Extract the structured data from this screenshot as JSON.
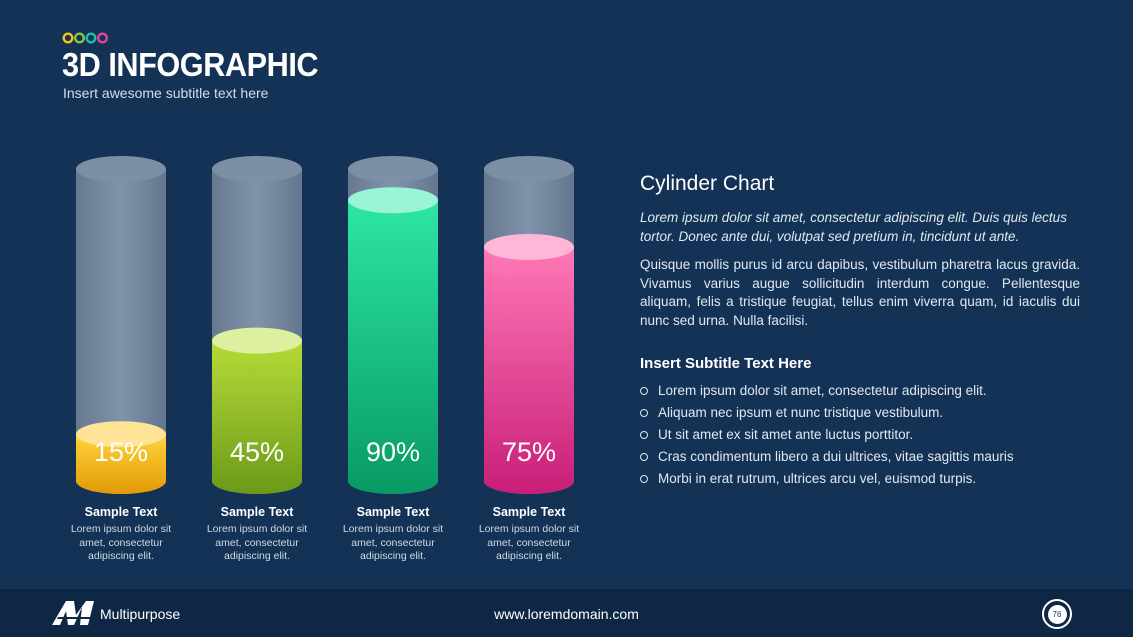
{
  "header": {
    "title": "3D INFOGRAPHIC",
    "subtitle": "Insert awesome subtitle text here",
    "dot_colors": [
      "#f5c518",
      "#8bc53f",
      "#1fbfa0",
      "#e8439c"
    ]
  },
  "chart_data": {
    "type": "bar",
    "categories": [
      "Sample Text",
      "Sample Text",
      "Sample Text",
      "Sample Text"
    ],
    "values": [
      15,
      45,
      90,
      75
    ],
    "value_labels": [
      "15%",
      "45%",
      "90%",
      "75%"
    ],
    "ylim": [
      0,
      100
    ],
    "colors": [
      {
        "top": "#ffe396",
        "light": "#ffd33d",
        "dark": "#e39a05"
      },
      {
        "top": "#dcf0a0",
        "light": "#b6db38",
        "dark": "#6c9a18"
      },
      {
        "top": "#9af5d6",
        "light": "#2de6a4",
        "dark": "#089a62"
      },
      {
        "top": "#ffb7d8",
        "light": "#ff78b6",
        "dark": "#c81e78"
      }
    ],
    "captions": [
      "Lorem ipsum dolor sit amet, consectetur adipiscing elit.",
      "Lorem ipsum dolor sit amet, consectetur adipiscing elit.",
      "Lorem ipsum dolor sit amet, consectetur adipiscing elit.",
      "Lorem ipsum dolor sit amet, consectetur adipiscing elit."
    ]
  },
  "panel": {
    "title": "Cylinder Chart",
    "italic": "Lorem ipsum dolor sit amet, consectetur adipiscing elit. Duis quis lectus tortor. Donec ante dui, volutpat sed pretium in, tincidunt ut ante.",
    "body": "Quisque mollis purus id arcu dapibus, vestibulum pharetra lacus gravida. Vivamus varius augue sollicitudin interdum congue. Pellentesque aliquam, felis a tristique feugiat, tellus enim viverra quam, id iaculis dui nunc sed urna. Nulla facilisi.",
    "subtitle": "Insert Subtitle Text Here",
    "bullets": [
      "Lorem ipsum dolor sit amet, consectetur adipiscing elit.",
      "Aliquam nec ipsum et nunc tristique vestibulum.",
      "Ut sit amet ex sit amet ante luctus porttitor.",
      "Cras condimentum libero a dui ultrices, vitae sagittis mauris",
      "Morbi in erat rutrum, ultrices arcu vel, euismod turpis."
    ]
  },
  "footer": {
    "brand": "Multipurpose",
    "url": "www.loremdomain.com",
    "page": "76"
  }
}
